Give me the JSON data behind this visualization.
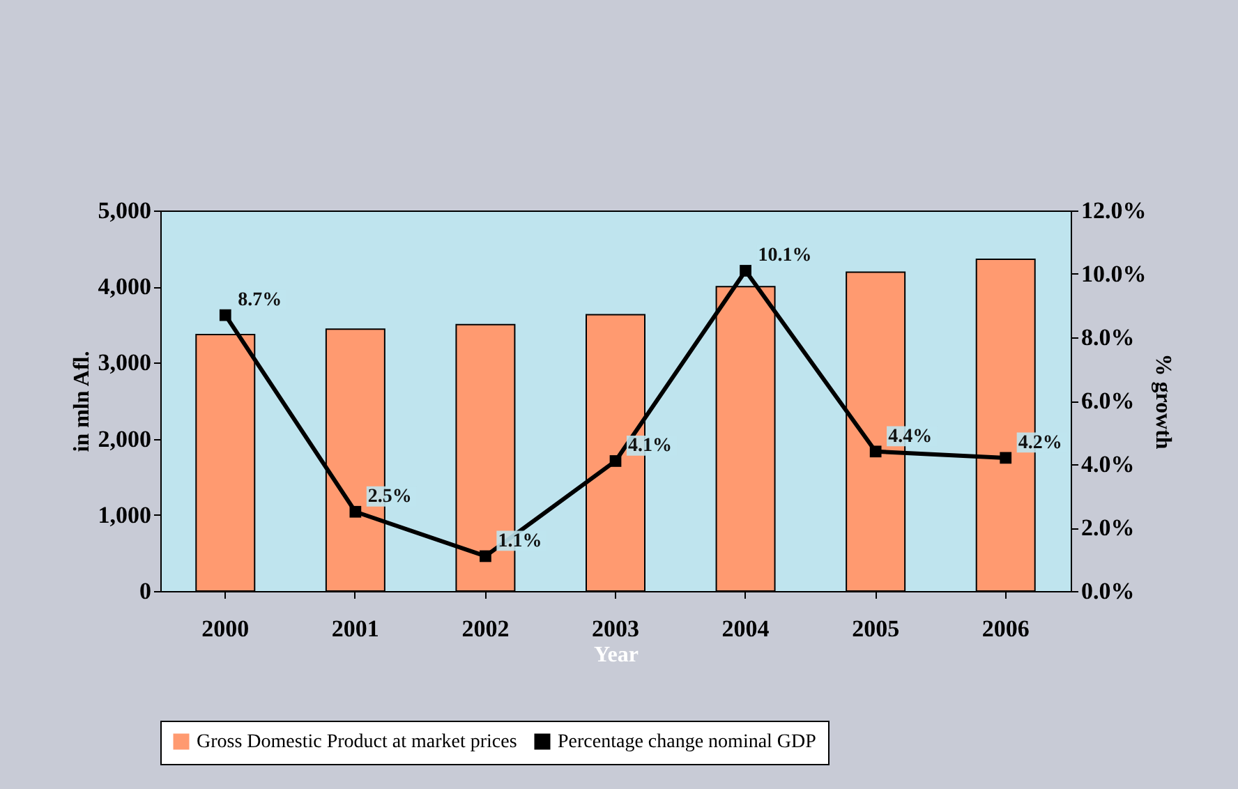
{
  "chart_data": {
    "type": "bar",
    "xlabel": "Year",
    "ylabel": "in mln Afl.",
    "y2label": "% growth",
    "categories": [
      "2000",
      "2001",
      "2002",
      "2003",
      "2004",
      "2005",
      "2006"
    ],
    "series": [
      {
        "name": "Gross Domestic Product at market prices",
        "color": "#ff9a70",
        "values": [
          3370,
          3440,
          3500,
          3630,
          4000,
          4190,
          4360
        ]
      },
      {
        "name": "Percentage change nominal GDP",
        "type": "line",
        "axis": "y2",
        "color": "#000000",
        "marker": "square",
        "values": [
          8.7,
          2.5,
          1.1,
          4.1,
          10.1,
          4.4,
          4.2
        ],
        "value_labels": [
          "8.7%",
          "2.5%",
          "1.1%",
          "4.1%",
          "10.1%",
          "4.4%",
          "4.2%"
        ]
      }
    ],
    "ylim": [
      0,
      5000
    ],
    "yticks": [
      0,
      {
        "value": 1000,
        "label": "1,000"
      },
      {
        "value": 2000,
        "label": "2,000"
      },
      {
        "value": 3000,
        "label": "3,000"
      },
      {
        "value": 4000,
        "label": "4,000"
      },
      {
        "value": 5000,
        "label": "5,000"
      }
    ],
    "y2lim": [
      0,
      12
    ],
    "y2ticks": [
      {
        "value": 0,
        "label": "0.0%"
      },
      {
        "value": 2,
        "label": "2.0%"
      },
      {
        "value": 4,
        "label": "4.0%"
      },
      {
        "value": 6,
        "label": "6.0%"
      },
      {
        "value": 8,
        "label": "8.0%"
      },
      {
        "value": 10,
        "label": "10.0%"
      },
      {
        "value": 12,
        "label": "12.0%"
      }
    ],
    "grid": false,
    "legend": "bottom"
  }
}
